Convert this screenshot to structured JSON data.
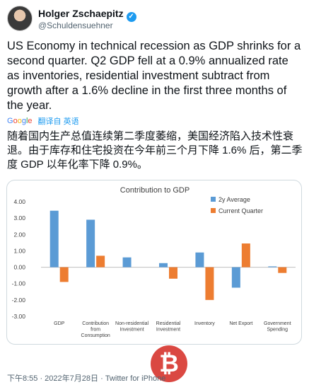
{
  "author": {
    "name": "Holger Zschaepitz",
    "handle": "@Schuldensuehner"
  },
  "tweet": {
    "text": "US Economy in technical recession as GDP shrinks for a second quarter. Q2 GDP fell at a 0.9% annualized rate as inventories, residential investment subtract from growth after a 1.6% decline in the first three months of the year.",
    "translation_provider": "Google",
    "translated_from": "翻译自 英语",
    "translated_text": "随着国内生产总值连续第二季度萎缩，美国经济陷入技术性衰退。由于库存和住宅投资在今年前三个月下降 1.6% 后，第二季度 GDP 以年化率下降 0.9%。"
  },
  "footer": {
    "timestamp": "下午8:55 · 2022年7月28日",
    "source": "Twitter for iPhone"
  },
  "watermark": "₿",
  "colors": {
    "series_avg": "#5b9bd5",
    "series_current": "#ed7d31",
    "link": "#1d9bf0"
  },
  "chart_data": {
    "type": "bar",
    "title": "Contribution to GDP",
    "categories": [
      "GDP",
      "Contribution from Consumption",
      "Non-residential Investment",
      "Residential Investment",
      "Inventory",
      "Net Export",
      "Government Spending"
    ],
    "series": [
      {
        "name": "2y Average",
        "values": [
          3.45,
          2.9,
          0.6,
          0.25,
          0.9,
          -1.25,
          0.05
        ]
      },
      {
        "name": "Current Quarter",
        "values": [
          -0.9,
          0.7,
          0.0,
          -0.7,
          -2.0,
          1.45,
          -0.35
        ]
      }
    ],
    "ylim": [
      -3.0,
      4.0
    ],
    "yticks": [
      "4.00",
      "3.00",
      "2.00",
      "1.00",
      "0.00",
      "-1.00",
      "-2.00",
      "-3.00"
    ],
    "legend": "top-right",
    "grid": false
  }
}
